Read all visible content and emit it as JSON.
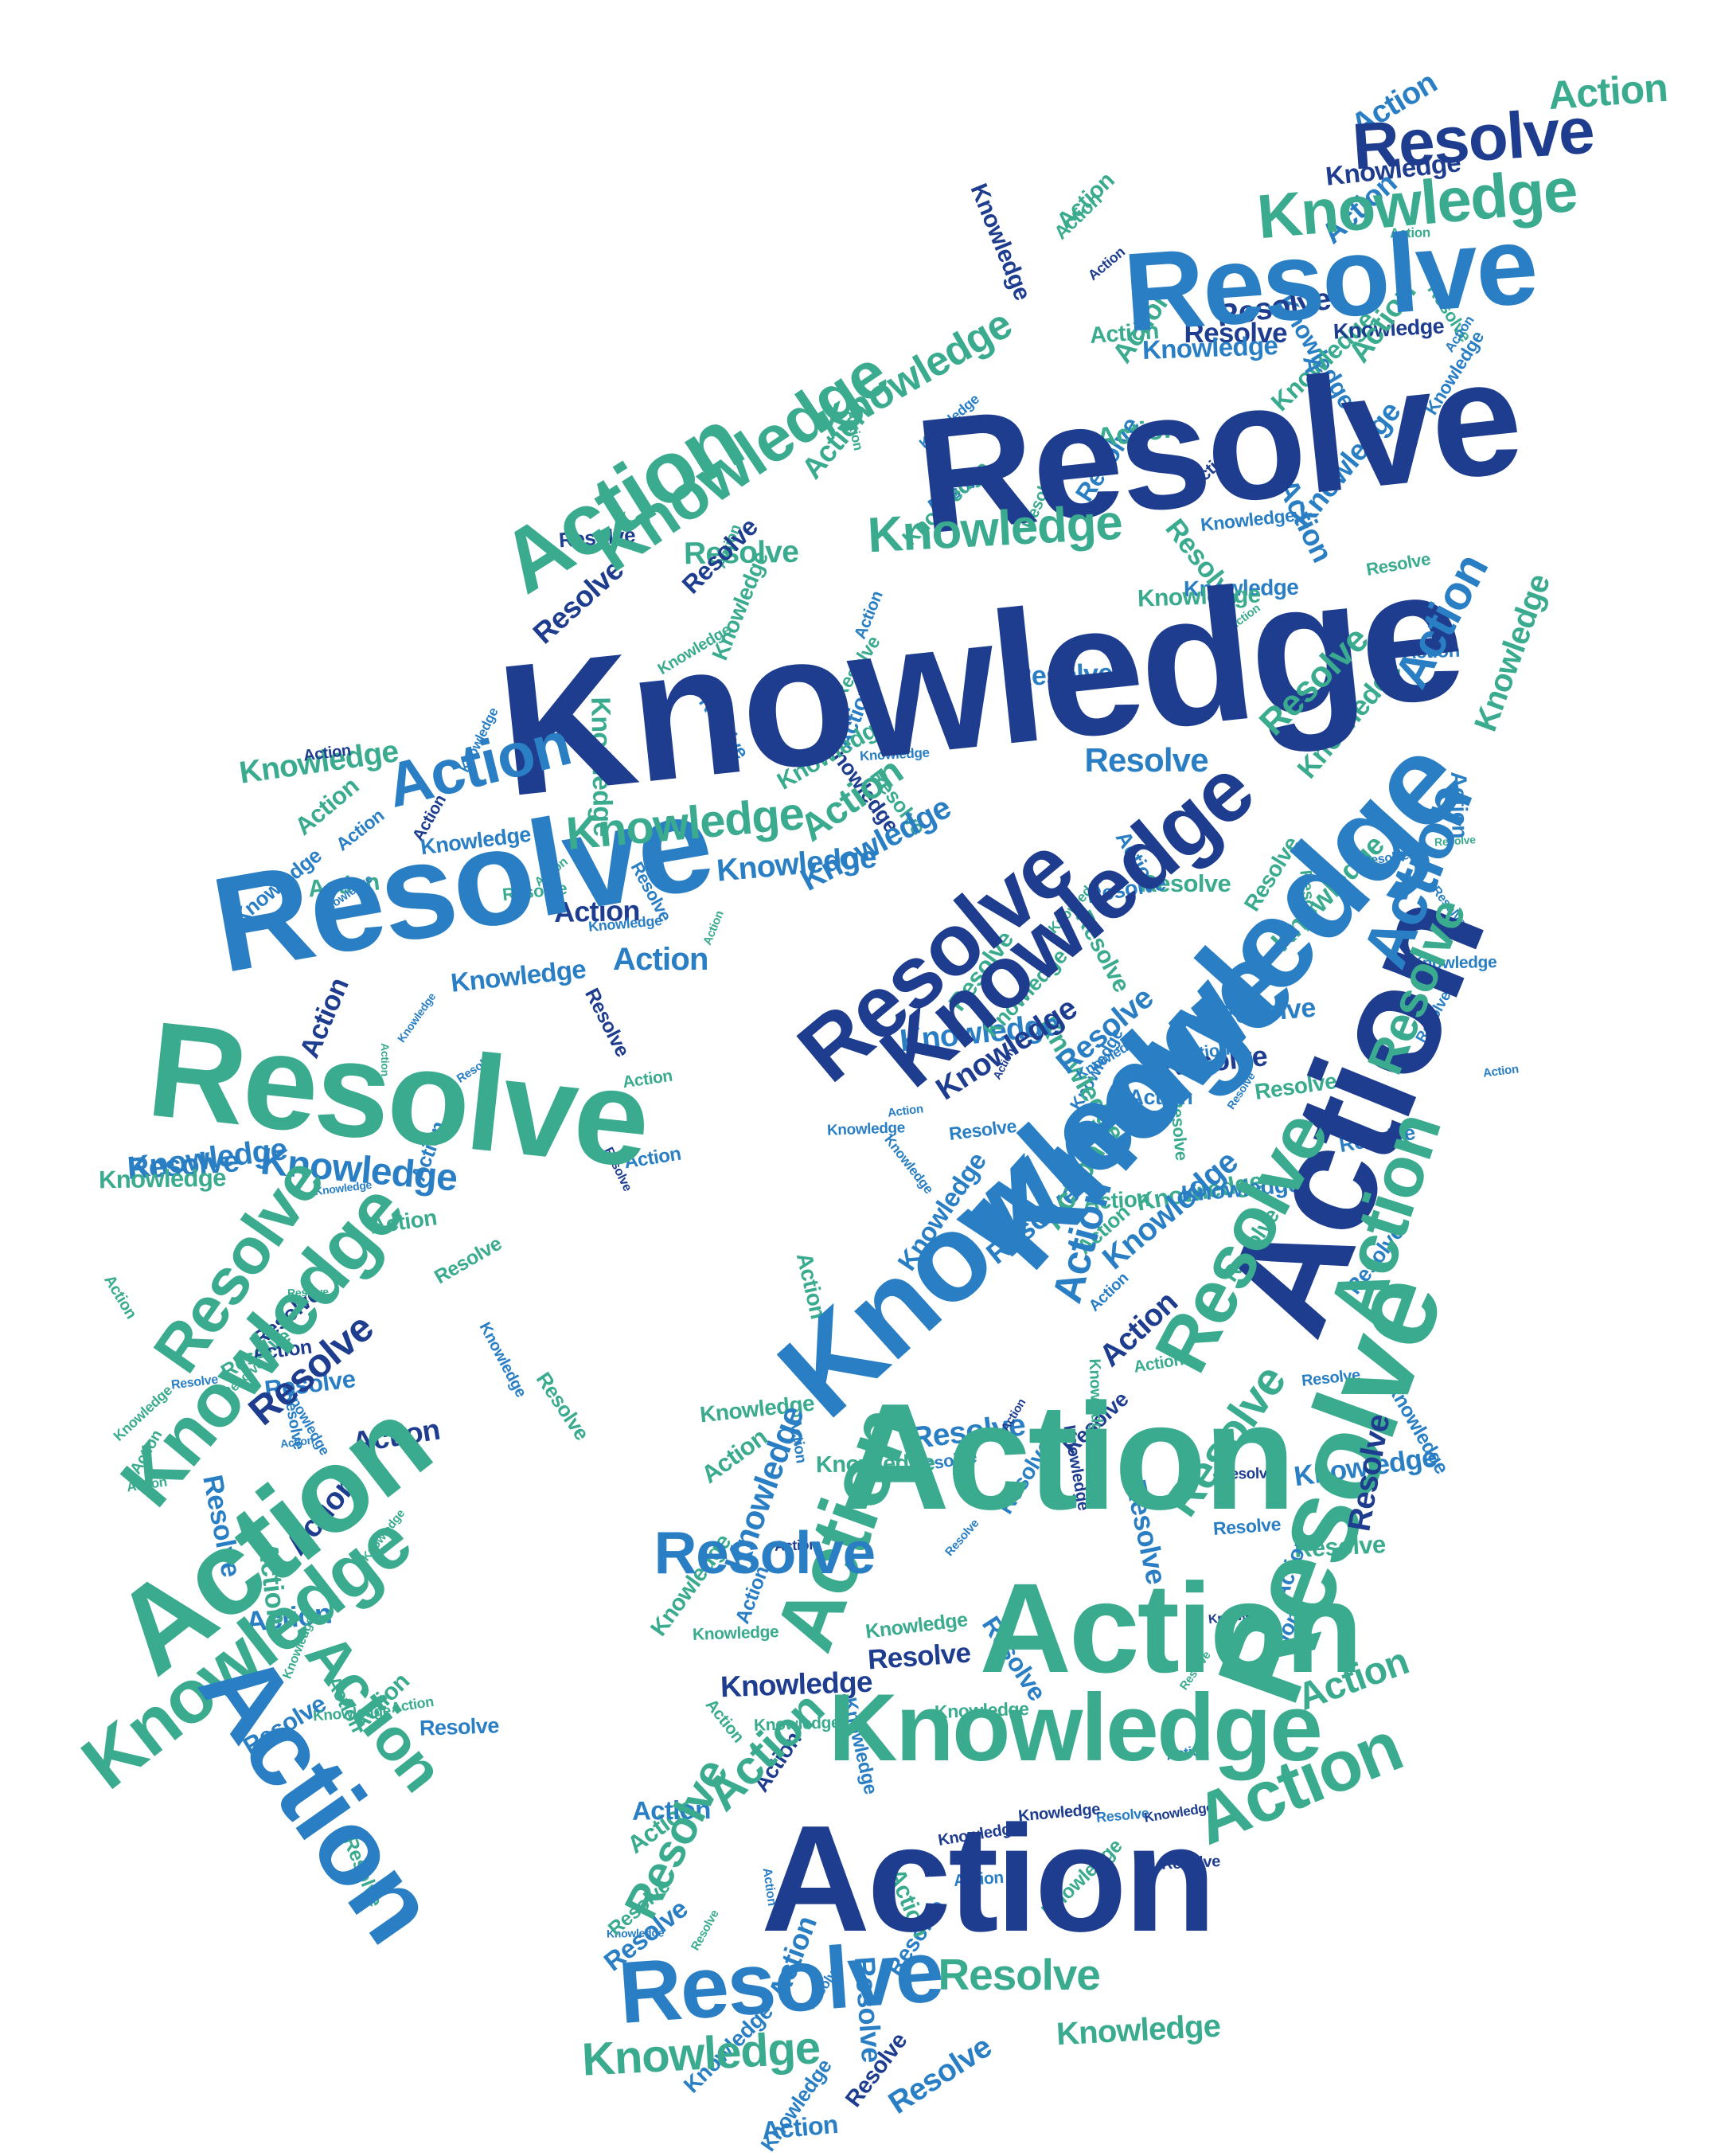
{
  "words": {
    "knowledge": "Knowledge",
    "resolve": "Resolve",
    "action": "Action"
  },
  "palette": {
    "navy": "#1e3d8f",
    "blue": "#2a7fc4",
    "teal": "#3aab8e",
    "background": "#ffffff"
  },
  "image": {
    "kind": "word-cloud",
    "shape": "leaf"
  }
}
